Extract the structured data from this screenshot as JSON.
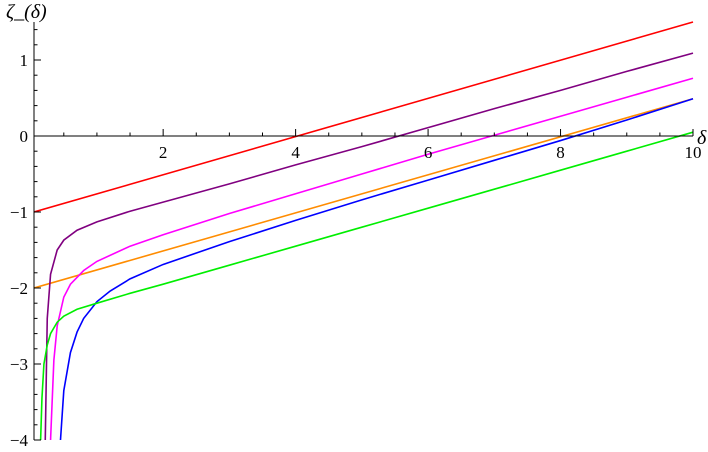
{
  "chart_data": {
    "type": "line",
    "title": "",
    "xlabel": "δ",
    "ylabel": "ζ_(δ)",
    "xlim": [
      0.05,
      10.0
    ],
    "ylim": [
      -4.0,
      1.5
    ],
    "grid": false,
    "legend": "none",
    "x_ticks": [
      2,
      4,
      6,
      8,
      10
    ],
    "y_ticks": [
      1,
      0,
      -1,
      -2,
      -3,
      -4
    ],
    "series": [
      {
        "color": "#ff0000",
        "x": [
          0.05,
          10.0
        ],
        "y": [
          -1.0,
          1.5
        ]
      },
      {
        "color": "#ff8c00",
        "x": [
          0.05,
          10.0
        ],
        "y": [
          -2.0,
          0.49
        ]
      },
      {
        "color": "#800080",
        "x": [
          0.22,
          0.25,
          0.3,
          0.4,
          0.5,
          0.7,
          1.0,
          1.5,
          2.0,
          3.0,
          4.0,
          5.0,
          6.0,
          7.0,
          8.0,
          9.0,
          10.0
        ],
        "y": [
          -4.0,
          -2.4,
          -1.82,
          -1.5,
          -1.37,
          -1.24,
          -1.13,
          -0.99,
          -0.87,
          -0.63,
          -0.38,
          -0.14,
          0.11,
          0.36,
          0.6,
          0.85,
          1.09
        ]
      },
      {
        "color": "#ff00ff",
        "x": [
          0.3,
          0.35,
          0.4,
          0.5,
          0.6,
          0.8,
          1.0,
          1.5,
          2.0,
          3.0,
          4.0,
          5.0,
          6.0,
          7.0,
          8.0,
          9.0,
          10.0
        ],
        "y": [
          -4.0,
          -2.95,
          -2.5,
          -2.12,
          -1.95,
          -1.77,
          -1.65,
          -1.45,
          -1.3,
          -1.02,
          -0.76,
          -0.5,
          -0.24,
          0.01,
          0.26,
          0.51,
          0.76
        ]
      },
      {
        "color": "#0000ff",
        "x": [
          0.45,
          0.5,
          0.6,
          0.7,
          0.8,
          1.0,
          1.2,
          1.5,
          2.0,
          3.0,
          4.0,
          5.0,
          6.0,
          7.0,
          8.0,
          9.0,
          10.0
        ],
        "y": [
          -4.0,
          -3.35,
          -2.85,
          -2.58,
          -2.4,
          -2.18,
          -2.04,
          -1.88,
          -1.69,
          -1.39,
          -1.11,
          -0.84,
          -0.58,
          -0.32,
          -0.06,
          0.21,
          0.49
        ]
      },
      {
        "color": "#00ee00",
        "x": [
          0.15,
          0.17,
          0.2,
          0.25,
          0.3,
          0.4,
          0.5,
          0.7,
          1.0,
          1.5,
          2.0,
          3.0,
          4.0,
          5.0,
          6.0,
          7.0,
          8.0,
          9.0,
          10.0
        ],
        "y": [
          -4.0,
          -3.45,
          -3.0,
          -2.75,
          -2.6,
          -2.45,
          -2.37,
          -2.28,
          -2.2,
          -2.07,
          -1.95,
          -1.7,
          -1.45,
          -1.2,
          -0.95,
          -0.7,
          -0.45,
          -0.2,
          0.05
        ]
      }
    ]
  }
}
